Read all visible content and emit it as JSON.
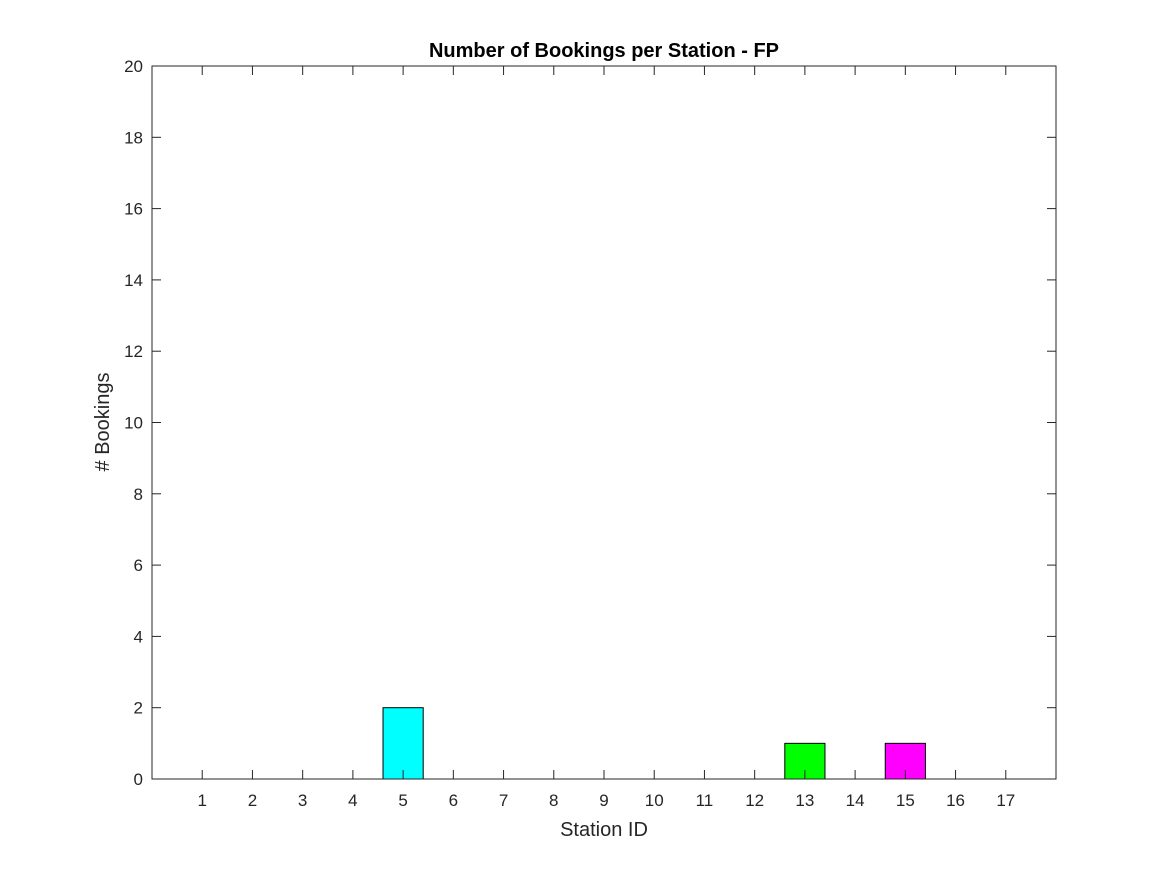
{
  "chart_data": {
    "type": "bar",
    "title": "Number of Bookings per Station - FP",
    "xlabel": "Station ID",
    "ylabel": "# Bookings",
    "categories": [
      "1",
      "2",
      "3",
      "4",
      "5",
      "6",
      "7",
      "8",
      "9",
      "10",
      "11",
      "12",
      "13",
      "14",
      "15",
      "16",
      "17"
    ],
    "values": [
      0,
      0,
      0,
      0,
      2,
      0,
      0,
      0,
      0,
      0,
      0,
      0,
      1,
      0,
      1,
      0,
      0
    ],
    "bar_colors": [
      "#00ffff",
      "#00ffff",
      "#00ffff",
      "#00ffff",
      "#00ffff",
      "#00ffff",
      "#00ffff",
      "#00ffff",
      "#00ffff",
      "#00ffff",
      "#00ffff",
      "#00ffff",
      "#00ff00",
      "#00ffff",
      "#ff00ff",
      "#00ffff",
      "#00ffff"
    ],
    "xlim": [
      0,
      18
    ],
    "ylim": [
      0,
      20
    ],
    "yticks": [
      0,
      2,
      4,
      6,
      8,
      10,
      12,
      14,
      16,
      18,
      20
    ],
    "grid": false,
    "legend": "none"
  }
}
